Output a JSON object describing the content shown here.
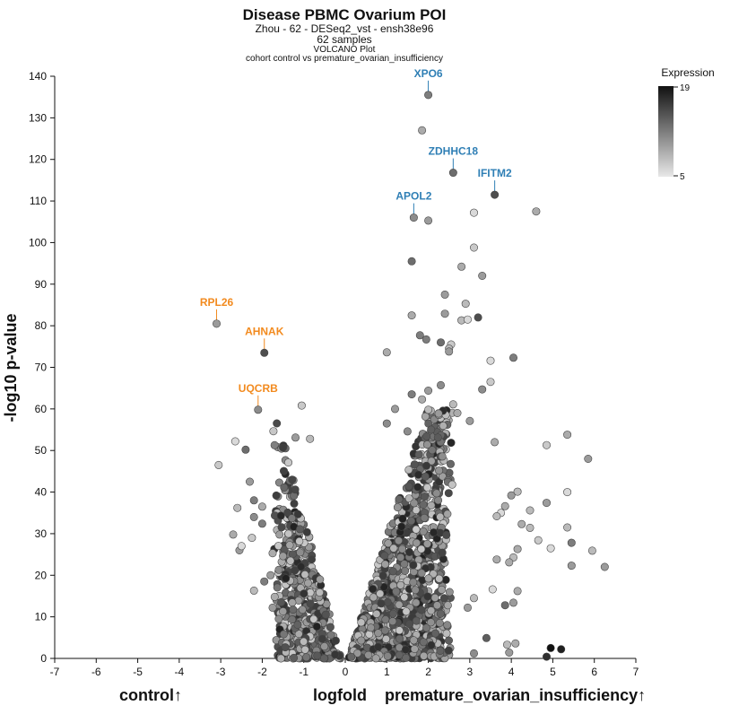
{
  "title": "Disease PBMC Ovarium POI",
  "subtitle1": "Zhou - 62 - DESeq2_vst - ensh38e96",
  "subtitle2": "62 samples",
  "subtitle3": "VOLCANO Plot",
  "subtitle4": "cohort control vs premature_ovarian_insufficiency",
  "legend": {
    "title": "Expression",
    "max_label": "19",
    "min_label": "5"
  },
  "colors": {
    "down_label": "#f28a1e",
    "up_label": "#2f7fb5",
    "point_dark": "#1a1a1a",
    "point_light": "#dddddd"
  },
  "x_left_label": "control↑",
  "x_center_label": "logfold",
  "x_right_label": "premature_ovarian_insufficiency↑",
  "chart_data": {
    "type": "scatter",
    "title": "Disease PBMC Ovarium POI",
    "xlabel": "logfold",
    "ylabel": "-log10 p-value",
    "xlim": [
      -7,
      7
    ],
    "ylim": [
      0,
      140
    ],
    "xticks": [
      "-7",
      "-6",
      "-5",
      "-4",
      "-3",
      "-2",
      "-1",
      "0",
      "1",
      "2",
      "3",
      "4",
      "5",
      "6",
      "7"
    ],
    "yticks": [
      "0",
      "10",
      "20",
      "30",
      "40",
      "50",
      "60",
      "70",
      "80",
      "90",
      "100",
      "110",
      "120",
      "130",
      "140"
    ],
    "color_scale": {
      "name": "Expression",
      "min": 5,
      "max": 19
    },
    "labeled_points": [
      {
        "gene": "XPO6",
        "x": 2.0,
        "y": 135.5,
        "expr": 12,
        "side": "up"
      },
      {
        "gene": "ZDHHC18",
        "x": 2.6,
        "y": 116.8,
        "expr": 13,
        "side": "up"
      },
      {
        "gene": "IFITM2",
        "x": 3.6,
        "y": 111.5,
        "expr": 15,
        "side": "up"
      },
      {
        "gene": "APOL2",
        "x": 1.65,
        "y": 106.0,
        "expr": 11,
        "side": "up"
      },
      {
        "gene": "RPL26",
        "x": -3.1,
        "y": 80.5,
        "expr": 10,
        "side": "down"
      },
      {
        "gene": "AHNAK",
        "x": -1.95,
        "y": 73.5,
        "expr": 15,
        "side": "down"
      },
      {
        "gene": "UQCRB",
        "x": -2.1,
        "y": 59.8,
        "expr": 11,
        "side": "down"
      }
    ],
    "points": [
      [
        1.85,
        127,
        9
      ],
      [
        2.0,
        105.3,
        10
      ],
      [
        3.1,
        107.2,
        6
      ],
      [
        4.6,
        107.5,
        9
      ],
      [
        3.1,
        98.8,
        7
      ],
      [
        1.6,
        95.5,
        13
      ],
      [
        2.8,
        94.2,
        9
      ],
      [
        3.3,
        92.0,
        10
      ],
      [
        2.4,
        87.5,
        10
      ],
      [
        2.9,
        85.3,
        8
      ],
      [
        1.6,
        82.5,
        9
      ],
      [
        2.4,
        82.9,
        10
      ],
      [
        2.8,
        81.3,
        8
      ],
      [
        2.95,
        81.5,
        6
      ],
      [
        3.2,
        82.0,
        15
      ],
      [
        1.8,
        77.7,
        12
      ],
      [
        1.95,
        76.7,
        12
      ],
      [
        2.3,
        76.0,
        13
      ],
      [
        2.55,
        75.5,
        7
      ],
      [
        2.5,
        74.5,
        8
      ],
      [
        1.0,
        73.6,
        9
      ],
      [
        2.5,
        73.8,
        10
      ],
      [
        3.5,
        71.6,
        6
      ],
      [
        4.05,
        72.3,
        12
      ],
      [
        3.5,
        66.5,
        7
      ],
      [
        2.3,
        65.7,
        11
      ],
      [
        3.3,
        64.7,
        11
      ],
      [
        1.6,
        63.5,
        12
      ],
      [
        2.0,
        64.4,
        10
      ],
      [
        1.85,
        62.3,
        9
      ],
      [
        2.6,
        61.1,
        8
      ],
      [
        1.2,
        60.0,
        10
      ],
      [
        2.0,
        59.8,
        8
      ],
      [
        2.25,
        58.9,
        10
      ],
      [
        2.7,
        59.0,
        9
      ],
      [
        -1.05,
        60.8,
        7
      ],
      [
        -2.65,
        52.2,
        6
      ],
      [
        -2.4,
        50.2,
        13
      ],
      [
        -1.2,
        53.1,
        10
      ],
      [
        -0.85,
        52.8,
        8
      ],
      [
        1.0,
        56.5,
        11
      ],
      [
        1.5,
        54.6,
        11
      ],
      [
        3.0,
        57.1,
        10
      ],
      [
        3.6,
        52.0,
        9
      ],
      [
        4.85,
        51.3,
        7
      ],
      [
        5.35,
        53.8,
        9
      ],
      [
        5.85,
        48.0,
        10
      ],
      [
        5.35,
        40.0,
        6
      ],
      [
        4.85,
        37.4,
        10
      ],
      [
        4.15,
        40.1,
        8
      ],
      [
        4.0,
        39.2,
        10
      ],
      [
        3.85,
        36.6,
        9
      ],
      [
        3.75,
        35.0,
        6
      ],
      [
        3.65,
        34.2,
        8
      ],
      [
        4.45,
        35.6,
        8
      ],
      [
        4.25,
        32.3,
        9
      ],
      [
        4.45,
        31.4,
        8
      ],
      [
        5.35,
        31.5,
        8
      ],
      [
        5.45,
        27.8,
        12
      ],
      [
        5.95,
        25.9,
        8
      ],
      [
        5.45,
        22.3,
        10
      ],
      [
        6.25,
        22.0,
        10
      ],
      [
        4.95,
        26.5,
        6
      ],
      [
        4.65,
        28.4,
        7
      ],
      [
        4.15,
        26.3,
        9
      ],
      [
        4.05,
        24.3,
        8
      ],
      [
        3.95,
        23.1,
        9
      ],
      [
        3.65,
        23.8,
        9
      ],
      [
        4.15,
        16.2,
        9
      ],
      [
        3.85,
        12.8,
        13
      ],
      [
        4.05,
        13.4,
        10
      ],
      [
        3.55,
        16.6,
        6
      ],
      [
        3.1,
        14.5,
        8
      ],
      [
        2.95,
        12.2,
        10
      ],
      [
        3.4,
        4.9,
        14
      ],
      [
        3.1,
        1.2,
        11
      ],
      [
        3.9,
        3.3,
        8
      ],
      [
        4.1,
        3.6,
        9
      ],
      [
        3.95,
        1.4,
        10
      ],
      [
        4.85,
        0.4,
        17
      ],
      [
        4.95,
        2.5,
        19
      ],
      [
        5.2,
        2.2,
        18
      ],
      [
        -3.05,
        46.5,
        7
      ],
      [
        -2.3,
        42.5,
        10
      ],
      [
        -2.2,
        38.0,
        12
      ],
      [
        -2.6,
        36.2,
        8
      ],
      [
        -2.0,
        36.5,
        9
      ],
      [
        -2.2,
        34.0,
        11
      ],
      [
        -2.0,
        32.4,
        12
      ],
      [
        -2.25,
        29.0,
        7
      ],
      [
        -2.7,
        29.8,
        9
      ],
      [
        -2.55,
        26.0,
        10
      ],
      [
        -2.5,
        27.0,
        6
      ],
      [
        -1.75,
        25.3,
        9
      ],
      [
        -1.5,
        24.6,
        10
      ],
      [
        -1.6,
        21.3,
        11
      ],
      [
        -1.8,
        20.0,
        10
      ],
      [
        -1.95,
        18.5,
        12
      ],
      [
        -2.2,
        16.3,
        8
      ],
      [
        -1.7,
        14.8,
        9
      ],
      [
        -1.75,
        12.2,
        10
      ],
      [
        -1.5,
        11.3,
        10
      ],
      [
        -1.6,
        9.5,
        11
      ]
    ],
    "cloud_counts": {
      "left": 520,
      "right": 1150
    }
  }
}
